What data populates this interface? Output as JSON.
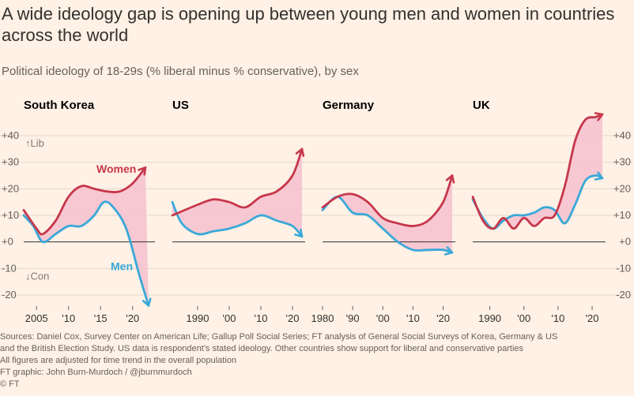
{
  "title": "A wide ideology gap is opening up between young men and women in countries across the world",
  "subtitle": "Political ideology of 18-29s (% liberal minus % conservative), by sex",
  "source_lines": [
    "Sources: Daniel Cox, Survey Center on American Life; Gallup Poll Social Series; FT analysis of General Social Surveys of Korea, Germany & US",
    "and the British Election Study. US data is respondent's stated ideology. Other countries show support for liberal and conservative parties",
    "All figures are adjusted for time trend in the overall population",
    "FT graphic: John Burn-Murdoch / @jburnmurdoch",
    "© FT"
  ],
  "colors": {
    "women": "#c7374b",
    "men": "#3aa8d8",
    "gap_fill": "#f6c3cf",
    "zero_line": "#33302e",
    "grid": "#e3d7cb"
  },
  "chart_data": [
    {
      "type": "line",
      "panel_title": "South Korea",
      "xlim": [
        2003,
        2023
      ],
      "ylim": [
        -25,
        45
      ],
      "xticks": [
        2005,
        2010,
        2015,
        2020
      ],
      "xtick_labels": [
        "2005",
        "'10",
        "'15",
        "'20"
      ],
      "yticks": [
        40,
        30,
        20,
        10,
        0,
        -10,
        -20
      ],
      "ytick_labels": [
        "+40",
        "+30",
        "+20",
        "+10",
        "+0",
        "-10",
        "-20"
      ],
      "axis_annotations": [
        "↑Lib",
        "↓Con"
      ],
      "series": [
        {
          "name": "Women",
          "x": [
            2003,
            2005,
            2006,
            2008,
            2010,
            2012,
            2014,
            2016,
            2018,
            2020,
            2022
          ],
          "y": [
            12,
            5,
            3,
            8,
            17,
            21,
            20,
            19,
            19,
            22,
            28
          ]
        },
        {
          "name": "Men",
          "x": [
            2003,
            2004.5,
            2006,
            2008,
            2010,
            2012,
            2014,
            2015.5,
            2017,
            2019,
            2021,
            2022.5
          ],
          "y": [
            10,
            6,
            0,
            3,
            6,
            6,
            10,
            15,
            13,
            5,
            -12,
            -24
          ]
        }
      ]
    },
    {
      "type": "line",
      "panel_title": "US",
      "xlim": [
        1982,
        2023
      ],
      "ylim": [
        -25,
        45
      ],
      "xticks": [
        1990,
        2000,
        2010,
        2020
      ],
      "xtick_labels": [
        "1990",
        "'00",
        "'10",
        "'20"
      ],
      "series": [
        {
          "name": "Women",
          "x": [
            1982,
            1990,
            1995,
            2000,
            2005,
            2010,
            2015,
            2020,
            2023
          ],
          "y": [
            10,
            14,
            16,
            15,
            13,
            17,
            19,
            25,
            35
          ]
        },
        {
          "name": "Men",
          "x": [
            1982,
            1985,
            1990,
            1995,
            2000,
            2005,
            2010,
            2015,
            2020,
            2023
          ],
          "y": [
            15,
            7,
            3,
            4,
            5,
            7,
            10,
            8,
            6,
            2
          ]
        }
      ]
    },
    {
      "type": "line",
      "panel_title": "Germany",
      "xlim": [
        1980,
        2023
      ],
      "ylim": [
        -25,
        45
      ],
      "xticks": [
        1980,
        1990,
        2000,
        2010,
        2020
      ],
      "xtick_labels": [
        "1980",
        "'90",
        "'00",
        "'10",
        "'20"
      ],
      "series": [
        {
          "name": "Women",
          "x": [
            1980,
            1985,
            1990,
            1995,
            2000,
            2005,
            2010,
            2015,
            2020,
            2023
          ],
          "y": [
            13,
            17,
            18,
            15,
            9,
            7,
            6,
            8,
            15,
            25
          ]
        },
        {
          "name": "Men",
          "x": [
            1980,
            1985,
            1990,
            1995,
            2000,
            2005,
            2010,
            2015,
            2020,
            2023
          ],
          "y": [
            12,
            17,
            11,
            10,
            5,
            0,
            -3,
            -3,
            -3,
            -4
          ]
        }
      ]
    },
    {
      "type": "line",
      "panel_title": "UK",
      "xlim": [
        1985,
        2023
      ],
      "ylim": [
        -25,
        45
      ],
      "xticks": [
        1990,
        2000,
        2010,
        2020
      ],
      "xtick_labels": [
        "1990",
        "'00",
        "'10",
        "'20"
      ],
      "series": [
        {
          "name": "Women",
          "x": [
            1985,
            1988,
            1991,
            1994,
            1997,
            2000,
            2003,
            2006,
            2009,
            2012,
            2015,
            2018,
            2021,
            2023
          ],
          "y": [
            17,
            8,
            5,
            9,
            5,
            9,
            6,
            9,
            10,
            21,
            38,
            46,
            47,
            48
          ]
        },
        {
          "name": "Men",
          "x": [
            1985,
            1988,
            1991,
            1994,
            1997,
            2000,
            2003,
            2006,
            2009,
            2012,
            2015,
            2018,
            2021,
            2023
          ],
          "y": [
            16,
            9,
            5,
            8,
            10,
            10,
            11,
            13,
            12,
            7,
            14,
            23,
            25,
            24
          ]
        }
      ]
    }
  ],
  "series_labels": {
    "women": "Women",
    "men": "Men"
  }
}
